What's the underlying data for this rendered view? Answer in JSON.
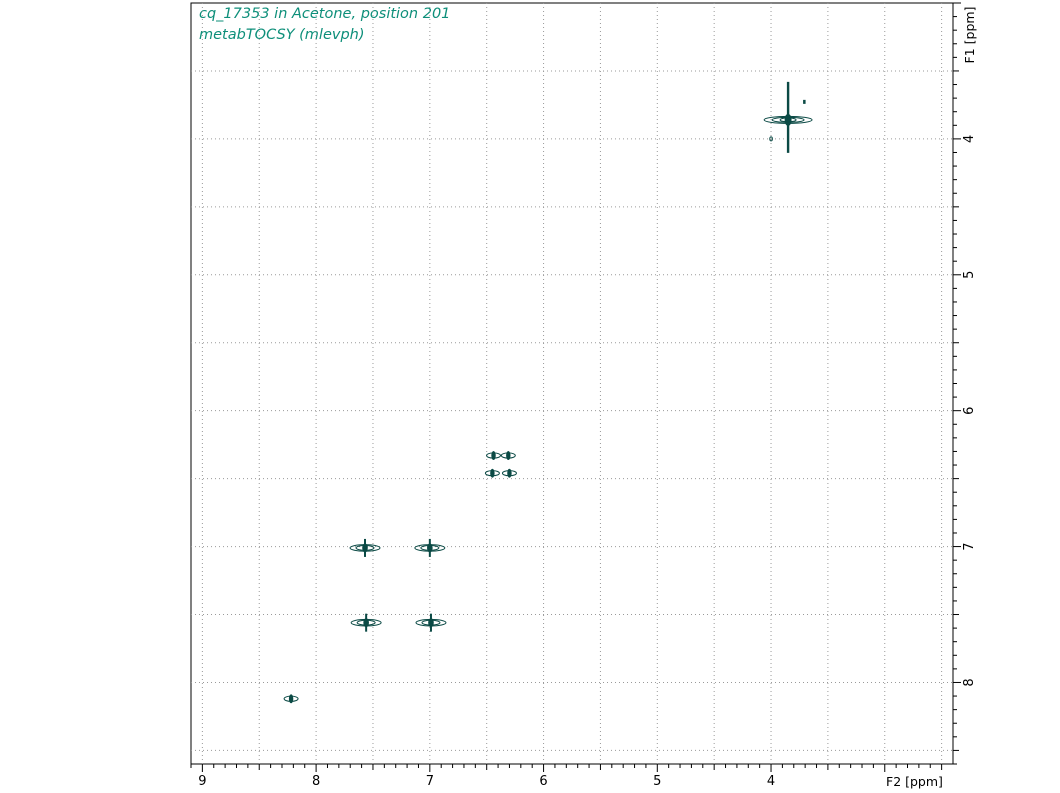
{
  "title_lines": [
    "cq_17353 in Acetone, position 201",
    "metabTOCSY (mlevph)"
  ],
  "chart_data": {
    "type": "scatter",
    "title": "cq_17353 in Acetone, position 201",
    "subtitle": "metabTOCSY (mlevph)",
    "xlabel": "F2 [ppm]",
    "ylabel": "F1 [ppm]",
    "xlim": [
      9.1,
      2.4
    ],
    "ylim": [
      3.0,
      8.6
    ],
    "xticks": [
      9,
      8,
      7,
      6,
      5,
      4
    ],
    "xtick_labels": [
      "9",
      "8",
      "7",
      "6",
      "5",
      "4"
    ],
    "yticks": [
      4,
      5,
      6,
      7,
      8
    ],
    "ytick_labels": [
      "4",
      "5",
      "6",
      "7",
      "8"
    ],
    "x_reversed": true,
    "y_reversed": true,
    "grid": true,
    "contour_color": "#0b4a45",
    "peaks": [
      {
        "x": 3.85,
        "y": 3.86,
        "kind": "large-diagonal"
      },
      {
        "x": 6.44,
        "y": 6.33,
        "kind": "small"
      },
      {
        "x": 6.31,
        "y": 6.33,
        "kind": "small"
      },
      {
        "x": 6.45,
        "y": 6.46,
        "kind": "small"
      },
      {
        "x": 6.3,
        "y": 6.46,
        "kind": "small"
      },
      {
        "x": 7.57,
        "y": 7.01,
        "kind": "medium"
      },
      {
        "x": 7.0,
        "y": 7.01,
        "kind": "medium"
      },
      {
        "x": 7.56,
        "y": 7.56,
        "kind": "medium"
      },
      {
        "x": 6.99,
        "y": 7.56,
        "kind": "medium"
      },
      {
        "x": 8.22,
        "y": 8.12,
        "kind": "small"
      }
    ]
  }
}
